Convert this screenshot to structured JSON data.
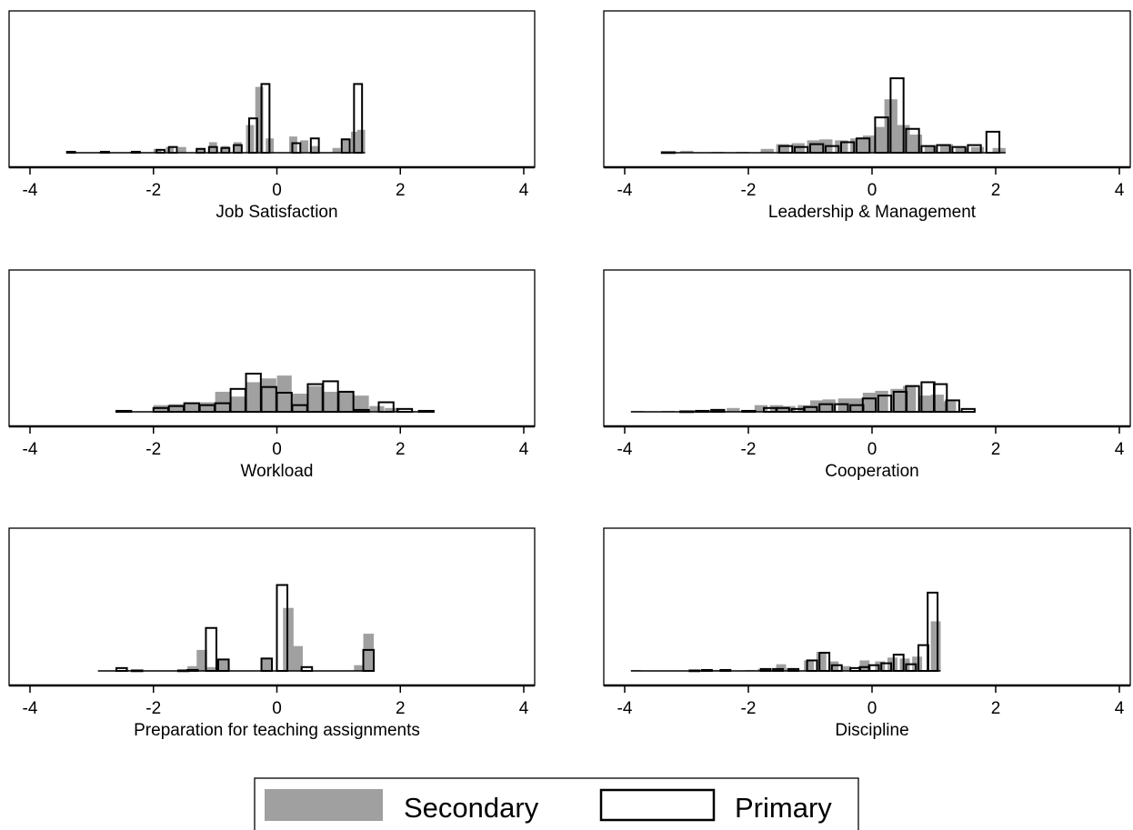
{
  "colors": {
    "secondary": "#a0a0a0",
    "primary_fill": "#ffffff",
    "primary_stroke": "#000000"
  },
  "legend": {
    "placement": "bottom-center",
    "items": [
      {
        "label": "Secondary",
        "style": "filled-gray"
      },
      {
        "label": "Primary",
        "style": "hollow-outline"
      }
    ]
  },
  "chart_data": [
    {
      "type": "bar",
      "subtype": "histogram",
      "xlabel": "Job Satisfaction",
      "xlim": [
        -4,
        4
      ],
      "xticks": [
        "-4",
        "-2",
        "0",
        "2",
        "4"
      ],
      "bin_width": 0.13,
      "secondary": {
        "bins": [
          [
            -3.4,
            0.01
          ],
          [
            -2.9,
            0.01
          ],
          [
            -2.4,
            0.01
          ],
          [
            -2.0,
            0.04
          ],
          [
            -1.8,
            0.06
          ],
          [
            -1.6,
            0.06
          ],
          [
            -1.3,
            0.05
          ],
          [
            -1.1,
            0.11
          ],
          [
            -0.9,
            0.07
          ],
          [
            -0.7,
            0.11
          ],
          [
            -0.5,
            0.29
          ],
          [
            -0.35,
            0.69
          ],
          [
            -0.18,
            0.15
          ],
          [
            0.2,
            0.17
          ],
          [
            0.38,
            0.13
          ],
          [
            0.55,
            0.07
          ],
          [
            0.9,
            0.05
          ],
          [
            1.05,
            0.15
          ],
          [
            1.2,
            0.22
          ],
          [
            1.3,
            0.24
          ]
        ]
      },
      "primary": {
        "bins": [
          [
            -3.4,
            0.01
          ],
          [
            -2.85,
            0.01
          ],
          [
            -2.35,
            0.01
          ],
          [
            -1.95,
            0.03
          ],
          [
            -1.75,
            0.06
          ],
          [
            -1.3,
            0.04
          ],
          [
            -1.1,
            0.06
          ],
          [
            -0.9,
            0.05
          ],
          [
            -0.7,
            0.08
          ],
          [
            -0.45,
            0.36
          ],
          [
            -0.25,
            0.72
          ],
          [
            0.25,
            0.1
          ],
          [
            0.55,
            0.15
          ],
          [
            1.05,
            0.14
          ],
          [
            1.25,
            0.72
          ]
        ]
      }
    },
    {
      "type": "bar",
      "subtype": "histogram",
      "xlabel": "Leadership & Management",
      "xlim": [
        -4,
        4
      ],
      "xticks": [
        "-4",
        "-2",
        "0",
        "2",
        "4"
      ],
      "bin_width": 0.21,
      "secondary": {
        "bins": [
          [
            -3.4,
            0.005
          ],
          [
            -3.1,
            0.02
          ],
          [
            -2.6,
            0.01
          ],
          [
            -2.2,
            0.01
          ],
          [
            -1.8,
            0.04
          ],
          [
            -1.55,
            0.09
          ],
          [
            -1.3,
            0.1
          ],
          [
            -1.05,
            0.13
          ],
          [
            -0.85,
            0.14
          ],
          [
            -0.6,
            0.13
          ],
          [
            -0.35,
            0.15
          ],
          [
            -0.15,
            0.18
          ],
          [
            0.05,
            0.27
          ],
          [
            0.2,
            0.56
          ],
          [
            0.4,
            0.29
          ],
          [
            0.6,
            0.19
          ],
          [
            0.85,
            0.07
          ],
          [
            1.1,
            0.09
          ],
          [
            1.35,
            0.05
          ],
          [
            1.6,
            0.06
          ],
          [
            1.95,
            0.05
          ]
        ]
      },
      "primary": {
        "bins": [
          [
            -3.4,
            0.005
          ],
          [
            -1.5,
            0.07
          ],
          [
            -1.25,
            0.06
          ],
          [
            -1.0,
            0.09
          ],
          [
            -0.75,
            0.07
          ],
          [
            -0.5,
            0.11
          ],
          [
            -0.25,
            0.15
          ],
          [
            0.05,
            0.37
          ],
          [
            0.3,
            0.78
          ],
          [
            0.55,
            0.25
          ],
          [
            0.8,
            0.07
          ],
          [
            1.05,
            0.08
          ],
          [
            1.3,
            0.06
          ],
          [
            1.55,
            0.08
          ],
          [
            1.85,
            0.22
          ]
        ]
      }
    },
    {
      "type": "bar",
      "subtype": "histogram",
      "xlabel": "Workload",
      "xlim": [
        -4,
        4
      ],
      "xticks": [
        "-4",
        "-2",
        "0",
        "2",
        "4"
      ],
      "bin_width": 0.24,
      "secondary": {
        "bins": [
          [
            -2.0,
            0.07
          ],
          [
            -1.75,
            0.08
          ],
          [
            -1.5,
            0.09
          ],
          [
            -1.25,
            0.1
          ],
          [
            -1.0,
            0.21
          ],
          [
            -0.75,
            0.16
          ],
          [
            -0.5,
            0.31
          ],
          [
            -0.25,
            0.35
          ],
          [
            0.0,
            0.38
          ],
          [
            0.25,
            0.19
          ],
          [
            0.5,
            0.27
          ],
          [
            0.75,
            0.21
          ],
          [
            1.0,
            0.22
          ],
          [
            1.25,
            0.17
          ],
          [
            1.5,
            0.06
          ],
          [
            1.75,
            0.04
          ],
          [
            2.0,
            0.01
          ]
        ]
      },
      "primary": {
        "bins": [
          [
            -2.6,
            0.01
          ],
          [
            -2.0,
            0.04
          ],
          [
            -1.75,
            0.06
          ],
          [
            -1.5,
            0.09
          ],
          [
            -1.25,
            0.07
          ],
          [
            -1.0,
            0.09
          ],
          [
            -0.75,
            0.24
          ],
          [
            -0.5,
            0.4
          ],
          [
            -0.25,
            0.26
          ],
          [
            0.0,
            0.2
          ],
          [
            0.25,
            0.07
          ],
          [
            0.5,
            0.29
          ],
          [
            0.75,
            0.32
          ],
          [
            1.0,
            0.21
          ],
          [
            1.25,
            0.02
          ],
          [
            1.65,
            0.1
          ],
          [
            1.95,
            0.03
          ],
          [
            2.3,
            0.01
          ]
        ]
      }
    },
    {
      "type": "bar",
      "subtype": "histogram",
      "xlabel": "Cooperation",
      "xlim": [
        -4,
        4
      ],
      "xticks": [
        "-4",
        "-2",
        "0",
        "2",
        "4"
      ],
      "bin_width": 0.21,
      "secondary": {
        "bins": [
          [
            -3.9,
            0.01
          ],
          [
            -3.4,
            0.01
          ],
          [
            -3.0,
            0.01
          ],
          [
            -2.6,
            0.03
          ],
          [
            -2.35,
            0.04
          ],
          [
            -1.9,
            0.07
          ],
          [
            -1.65,
            0.07
          ],
          [
            -1.45,
            0.06
          ],
          [
            -1.2,
            0.07
          ],
          [
            -1.0,
            0.12
          ],
          [
            -0.8,
            0.13
          ],
          [
            -0.55,
            0.14
          ],
          [
            -0.35,
            0.14
          ],
          [
            -0.15,
            0.2
          ],
          [
            0.05,
            0.22
          ],
          [
            0.3,
            0.24
          ],
          [
            0.5,
            0.27
          ],
          [
            0.75,
            0.17
          ],
          [
            0.95,
            0.18
          ],
          [
            1.15,
            0.11
          ],
          [
            1.35,
            0.01
          ]
        ]
      },
      "primary": {
        "bins": [
          [
            -3.1,
            0.005
          ],
          [
            -2.85,
            0.01
          ],
          [
            -2.6,
            0.02
          ],
          [
            -2.1,
            0.01
          ],
          [
            -1.75,
            0.04
          ],
          [
            -1.55,
            0.04
          ],
          [
            -1.3,
            0.03
          ],
          [
            -1.1,
            0.05
          ],
          [
            -0.85,
            0.08
          ],
          [
            -0.6,
            0.08
          ],
          [
            -0.35,
            0.07
          ],
          [
            -0.15,
            0.14
          ],
          [
            0.1,
            0.17
          ],
          [
            0.35,
            0.21
          ],
          [
            0.55,
            0.27
          ],
          [
            0.8,
            0.31
          ],
          [
            1.0,
            0.29
          ],
          [
            1.2,
            0.12
          ],
          [
            1.45,
            0.03
          ]
        ]
      }
    },
    {
      "type": "bar",
      "subtype": "histogram",
      "xlabel": "Preparation for teaching assignments",
      "xlim": [
        -4,
        4
      ],
      "xticks": [
        "-4",
        "-2",
        "0",
        "2",
        "4"
      ],
      "bin_width": 0.17,
      "secondary": {
        "bins": [
          [
            -2.9,
            0.005
          ],
          [
            -2.45,
            0.01
          ],
          [
            -2.1,
            0.005
          ],
          [
            -1.6,
            0.005
          ],
          [
            -1.45,
            0.05
          ],
          [
            -1.3,
            0.22
          ],
          [
            -1.15,
            0.04
          ],
          [
            -0.95,
            0.12
          ],
          [
            -0.25,
            0.13
          ],
          [
            0.1,
            0.66
          ],
          [
            0.25,
            0.26
          ],
          [
            1.15,
            0.005
          ],
          [
            1.25,
            0.06
          ],
          [
            1.4,
            0.39
          ]
        ]
      },
      "primary": {
        "bins": [
          [
            -2.6,
            0.03
          ],
          [
            -2.35,
            0.005
          ],
          [
            -1.6,
            0.005
          ],
          [
            -1.45,
            0.01
          ],
          [
            -1.15,
            0.45
          ],
          [
            -0.95,
            0.12
          ],
          [
            -0.25,
            0.13
          ],
          [
            0.0,
            0.9
          ],
          [
            0.4,
            0.04
          ],
          [
            1.4,
            0.22
          ]
        ]
      }
    },
    {
      "type": "bar",
      "subtype": "histogram",
      "xlabel": "Discipline",
      "xlim": [
        -4,
        4
      ],
      "xticks": [
        "-4",
        "-2",
        "0",
        "2",
        "4"
      ],
      "bin_width": 0.16,
      "secondary": {
        "bins": [
          [
            -3.9,
            0.01
          ],
          [
            -2.9,
            0.01
          ],
          [
            -2.6,
            0.01
          ],
          [
            -2.05,
            0.01
          ],
          [
            -1.85,
            0.02
          ],
          [
            -1.55,
            0.07
          ],
          [
            -1.4,
            0.03
          ],
          [
            -1.1,
            0.11
          ],
          [
            -0.9,
            0.2
          ],
          [
            -0.7,
            0.1
          ],
          [
            -0.5,
            0.05
          ],
          [
            -0.2,
            0.11
          ],
          [
            0.05,
            0.1
          ],
          [
            0.25,
            0.14
          ],
          [
            0.45,
            0.13
          ],
          [
            0.65,
            0.15
          ],
          [
            0.95,
            0.52
          ]
        ]
      },
      "primary": {
        "bins": [
          [
            -2.95,
            0.005
          ],
          [
            -2.75,
            0.01
          ],
          [
            -2.45,
            0.01
          ],
          [
            -1.8,
            0.02
          ],
          [
            -1.6,
            0.02
          ],
          [
            -1.35,
            0.02
          ],
          [
            -1.05,
            0.11
          ],
          [
            -0.85,
            0.19
          ],
          [
            -0.65,
            0.06
          ],
          [
            -0.35,
            0.03
          ],
          [
            -0.2,
            0.04
          ],
          [
            -0.05,
            0.06
          ],
          [
            0.15,
            0.08
          ],
          [
            0.35,
            0.17
          ],
          [
            0.55,
            0.07
          ],
          [
            0.75,
            0.27
          ],
          [
            0.9,
            0.82
          ]
        ]
      }
    }
  ]
}
